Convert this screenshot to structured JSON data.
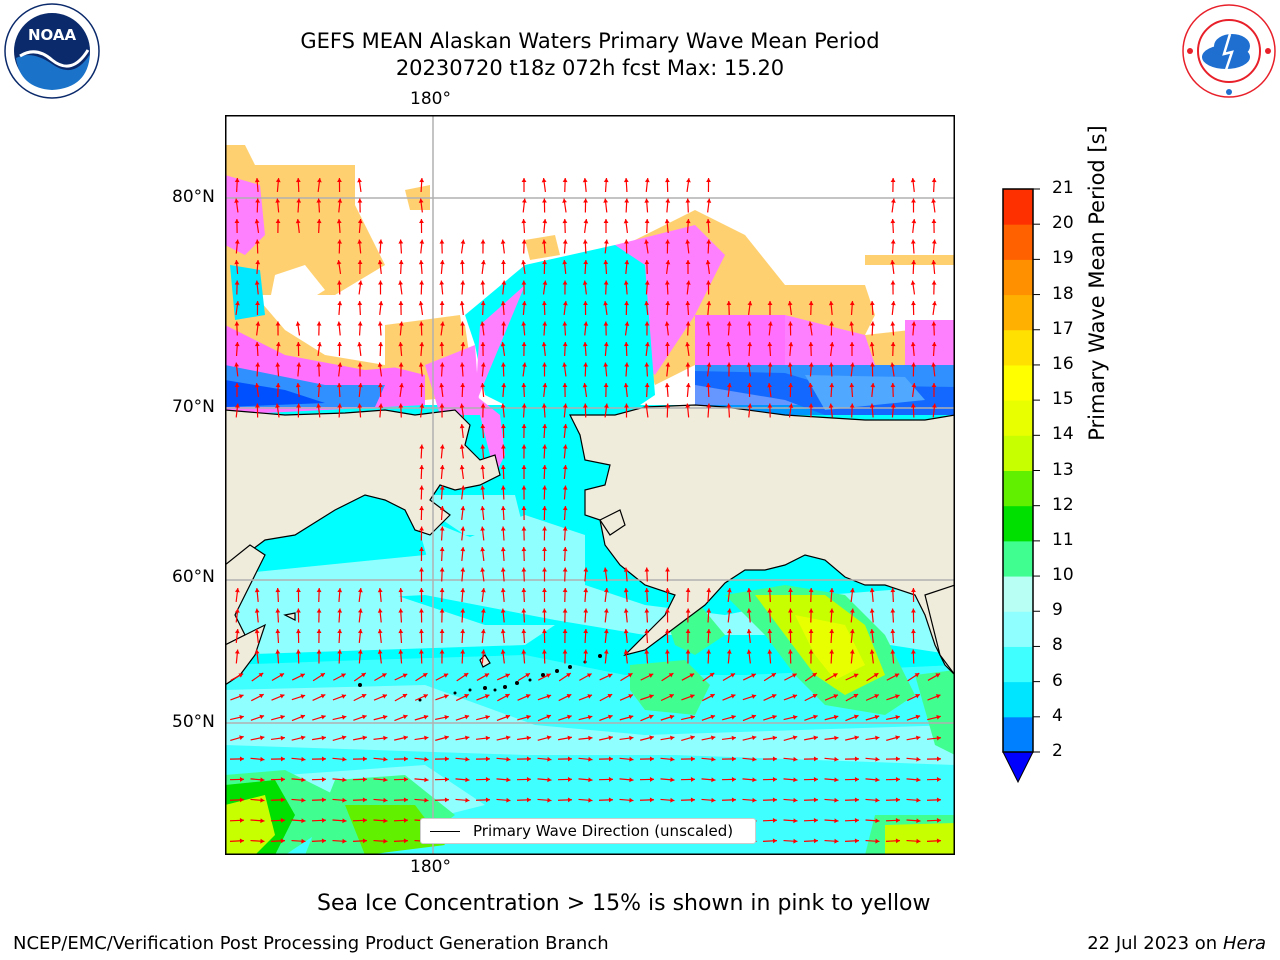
{
  "title": {
    "line1": "GEFS MEAN Alaskan Waters Primary Wave Mean Period",
    "line2": "20230720 t18z 072h fcst   Max: 15.20"
  },
  "logos": {
    "left": {
      "name": "NOAA",
      "ring_text": "NATIONAL OCEANIC AND ATMOSPHERIC ADMINISTRATION · U.S. DEPARTMENT OF COMMERCE",
      "colors": {
        "blue": "#1a5aa8",
        "navy": "#0b2a6b"
      }
    },
    "right": {
      "name": "NATIONAL WEATHER SERVICE",
      "colors": {
        "red": "#e8202a",
        "blue": "#1f6fd1"
      }
    }
  },
  "map": {
    "lon_label_top": "180°",
    "lon_label_bottom": "180°",
    "lat_labels": [
      "80°N",
      "70°N",
      "60°N",
      "50°N"
    ],
    "colors": {
      "land": "#efecdc",
      "ocean_default": "#00ffff",
      "grid": "#b0b0b0",
      "arrow": "#ff0000"
    }
  },
  "legend": {
    "label": "Primary Wave Direction (unscaled)"
  },
  "colorbar": {
    "label": "Primary Wave Mean Period [s]",
    "ticks": [
      "2",
      "4",
      "6",
      "8",
      "9",
      "10",
      "11",
      "12",
      "13",
      "14",
      "15",
      "16",
      "17",
      "18",
      "19",
      "20",
      "21"
    ],
    "colors": [
      "#0080ff",
      "#00e5ff",
      "#40ffff",
      "#90ffff",
      "#b8fff4",
      "#40ff90",
      "#00e000",
      "#60f000",
      "#c8ff00",
      "#e8ff00",
      "#ffff00",
      "#ffe000",
      "#ffb000",
      "#ff9000",
      "#ff6000",
      "#ff3000",
      "#ff0000"
    ],
    "extend_color": "#0000ff"
  },
  "note": "Sea Ice Concentration > 15% is shown in pink to yellow",
  "footer": {
    "left": "NCEP/EMC/Verification Post Processing Product Generation Branch",
    "right_prefix": "22 Jul 2023 on ",
    "right_italic": "Hera"
  }
}
